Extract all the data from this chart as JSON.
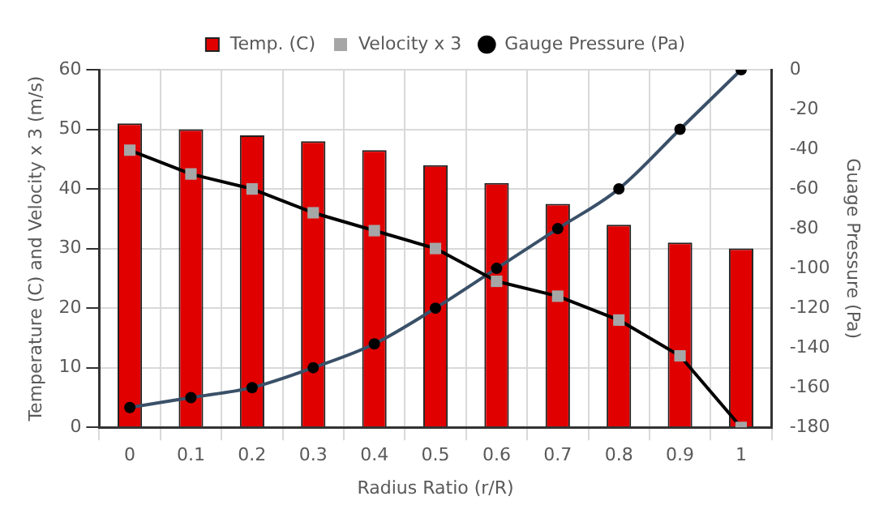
{
  "chart_data": {
    "type": "bar",
    "xlabel": "Radius Ratio (r/R)",
    "ylabel": "Temperature (C) and Velocity x 3 (m/s)",
    "y2label": "Guage Pressure (Pa)",
    "categories": [
      "0",
      "0.1",
      "0.2",
      "0.3",
      "0.4",
      "0.5",
      "0.6",
      "0.7",
      "0.8",
      "0.9",
      "1"
    ],
    "series": [
      {
        "name": "Temp. (C)",
        "color": "#e00000",
        "values": [
          51,
          50,
          49,
          48,
          46.5,
          44,
          41,
          37.5,
          34,
          31,
          30
        ]
      },
      {
        "name": "Velocity x 3",
        "type": "line",
        "color": "#000000",
        "marker": "square",
        "values": [
          46.5,
          42.5,
          40,
          36,
          33,
          30,
          24.5,
          22,
          18,
          12,
          0
        ]
      },
      {
        "name": "Gauge Pressure (Pa)",
        "type": "line",
        "axis": "y2",
        "color": "#3a5068",
        "marker": "circle",
        "values": [
          -170,
          -165,
          -160,
          -150,
          -138,
          -120,
          -100,
          -80,
          -60,
          -30,
          0
        ]
      }
    ],
    "ylim": [
      0,
      60
    ],
    "yticks": [
      0,
      10,
      20,
      30,
      40,
      50,
      60
    ],
    "y2lim": [
      -180,
      0
    ],
    "y2ticks": [
      -180,
      -160,
      -140,
      -120,
      -100,
      -80,
      -60,
      -40,
      -20,
      0
    ],
    "grid": true,
    "legend": "top"
  }
}
